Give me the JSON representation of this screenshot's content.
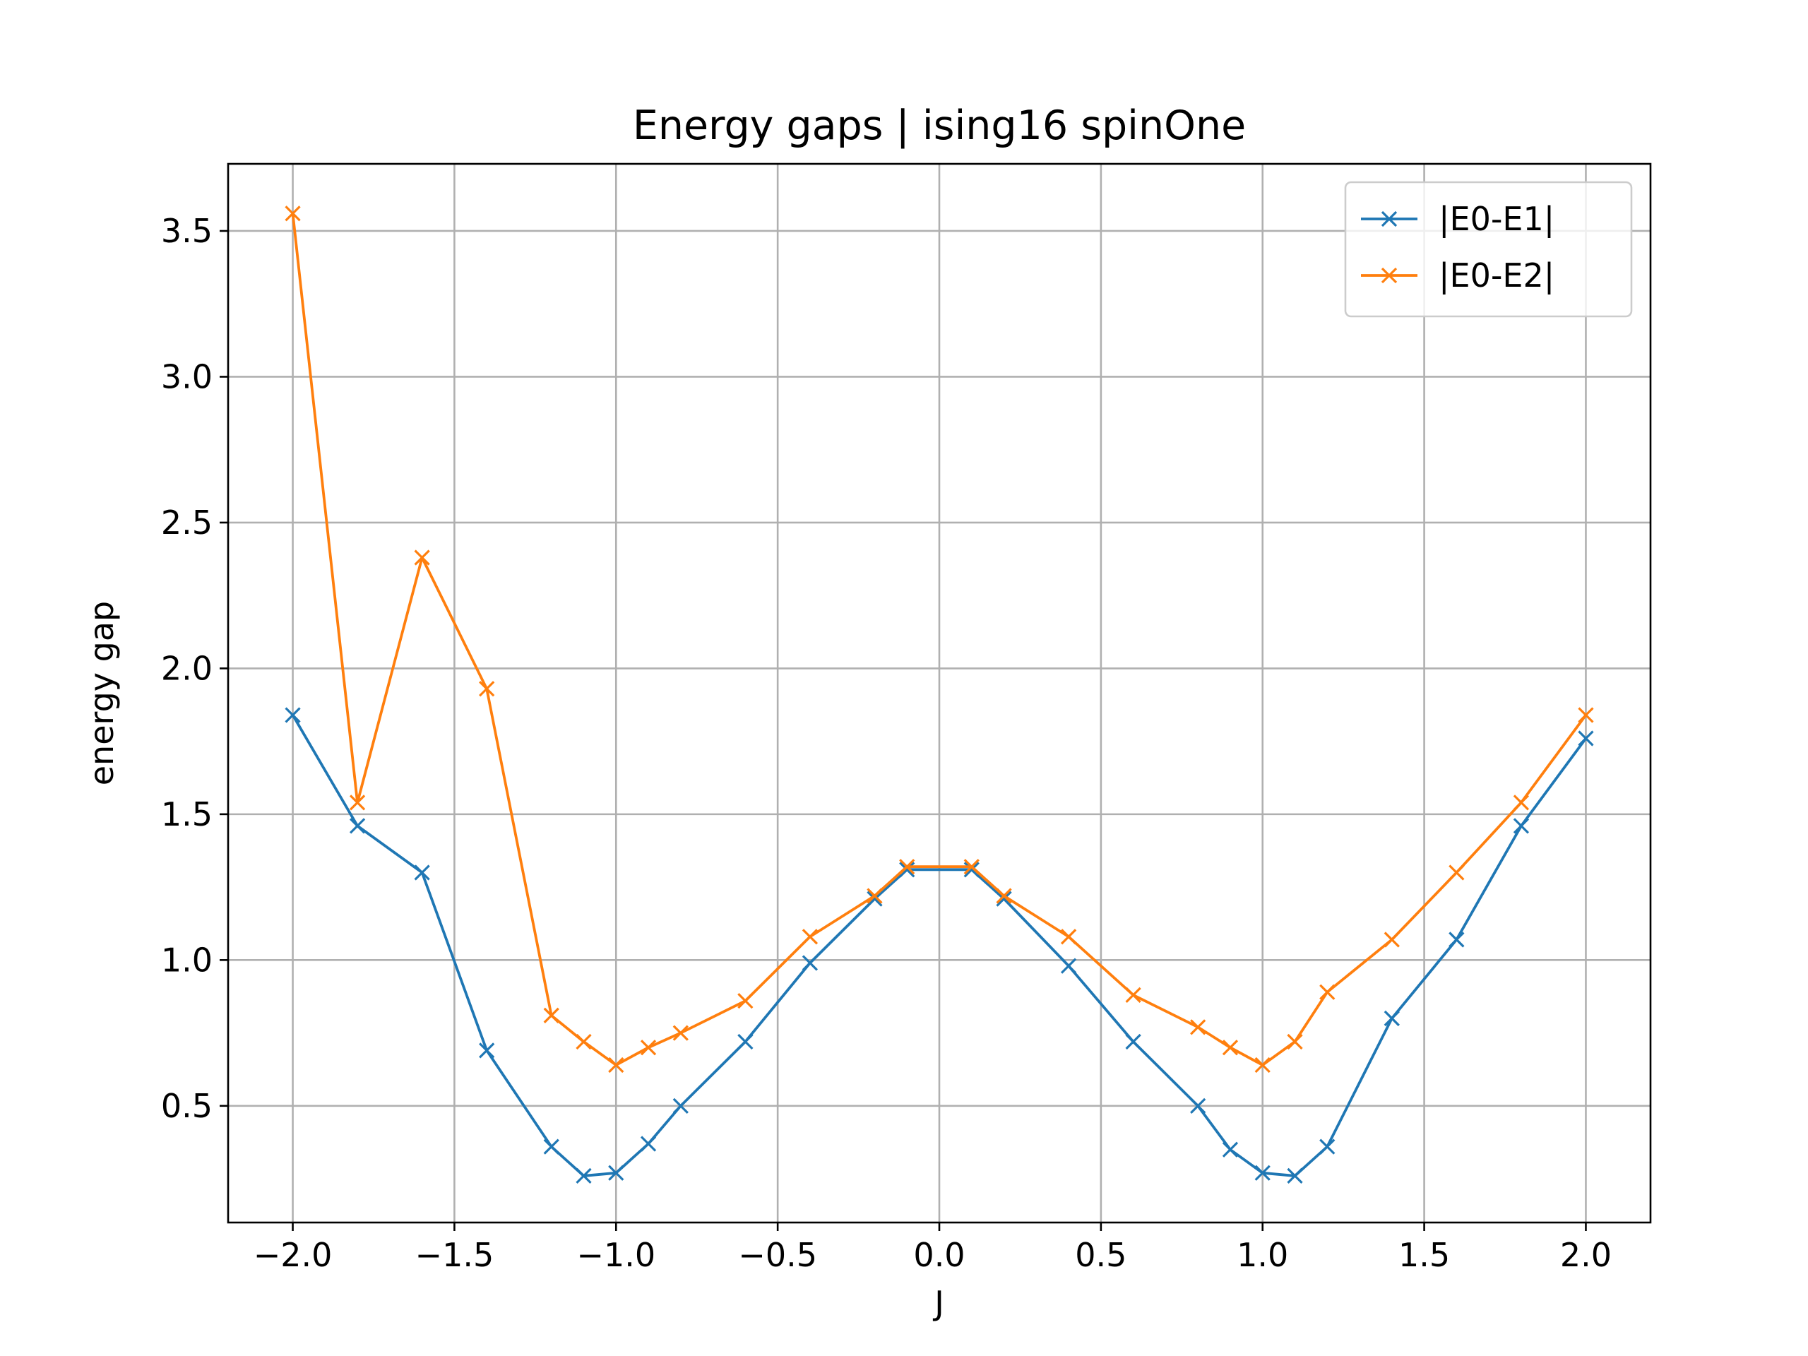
{
  "chart_data": {
    "type": "line",
    "title": "Energy gaps | ising16 spinOne",
    "xlabel": "J",
    "ylabel": "energy gap",
    "xlim": [
      -2.2,
      2.2
    ],
    "ylim": [
      0.1,
      3.73
    ],
    "xticks": [
      -2.0,
      -1.5,
      -1.0,
      -0.5,
      0.0,
      0.5,
      1.0,
      1.5,
      2.0
    ],
    "xtick_labels": [
      "−2.0",
      "−1.5",
      "−1.0",
      "−0.5",
      "0.0",
      "0.5",
      "1.0",
      "1.5",
      "2.0"
    ],
    "yticks": [
      0.5,
      1.0,
      1.5,
      2.0,
      2.5,
      3.0,
      3.5
    ],
    "ytick_labels": [
      "0.5",
      "1.0",
      "1.5",
      "2.0",
      "2.5",
      "3.0",
      "3.5"
    ],
    "grid": true,
    "legend_position": "top-right",
    "x": [
      -2.0,
      -1.8,
      -1.6,
      -1.4,
      -1.2,
      -1.1,
      -1.0,
      -0.9,
      -0.8,
      -0.6,
      -0.4,
      -0.2,
      -0.1,
      0.1,
      0.2,
      0.4,
      0.6,
      0.8,
      0.9,
      1.0,
      1.1,
      1.2,
      1.4,
      1.6,
      1.8,
      2.0
    ],
    "series": [
      {
        "name": "|E0-E1|",
        "color": "#1f77b4",
        "marker": "x",
        "values": [
          1.84,
          1.46,
          1.3,
          0.69,
          0.36,
          0.26,
          0.27,
          0.37,
          0.5,
          0.72,
          0.99,
          1.21,
          1.31,
          1.31,
          1.21,
          0.98,
          0.72,
          0.5,
          0.35,
          0.27,
          0.26,
          0.36,
          0.8,
          1.07,
          1.46,
          1.76
        ]
      },
      {
        "name": "|E0-E2|",
        "color": "#ff7f0e",
        "marker": "x",
        "values": [
          3.56,
          1.54,
          2.38,
          1.93,
          0.81,
          0.72,
          0.64,
          0.7,
          0.75,
          0.86,
          1.08,
          1.22,
          1.32,
          1.32,
          1.22,
          1.08,
          0.88,
          0.77,
          0.7,
          0.64,
          0.72,
          0.89,
          1.07,
          1.3,
          1.54,
          1.84
        ]
      }
    ]
  }
}
